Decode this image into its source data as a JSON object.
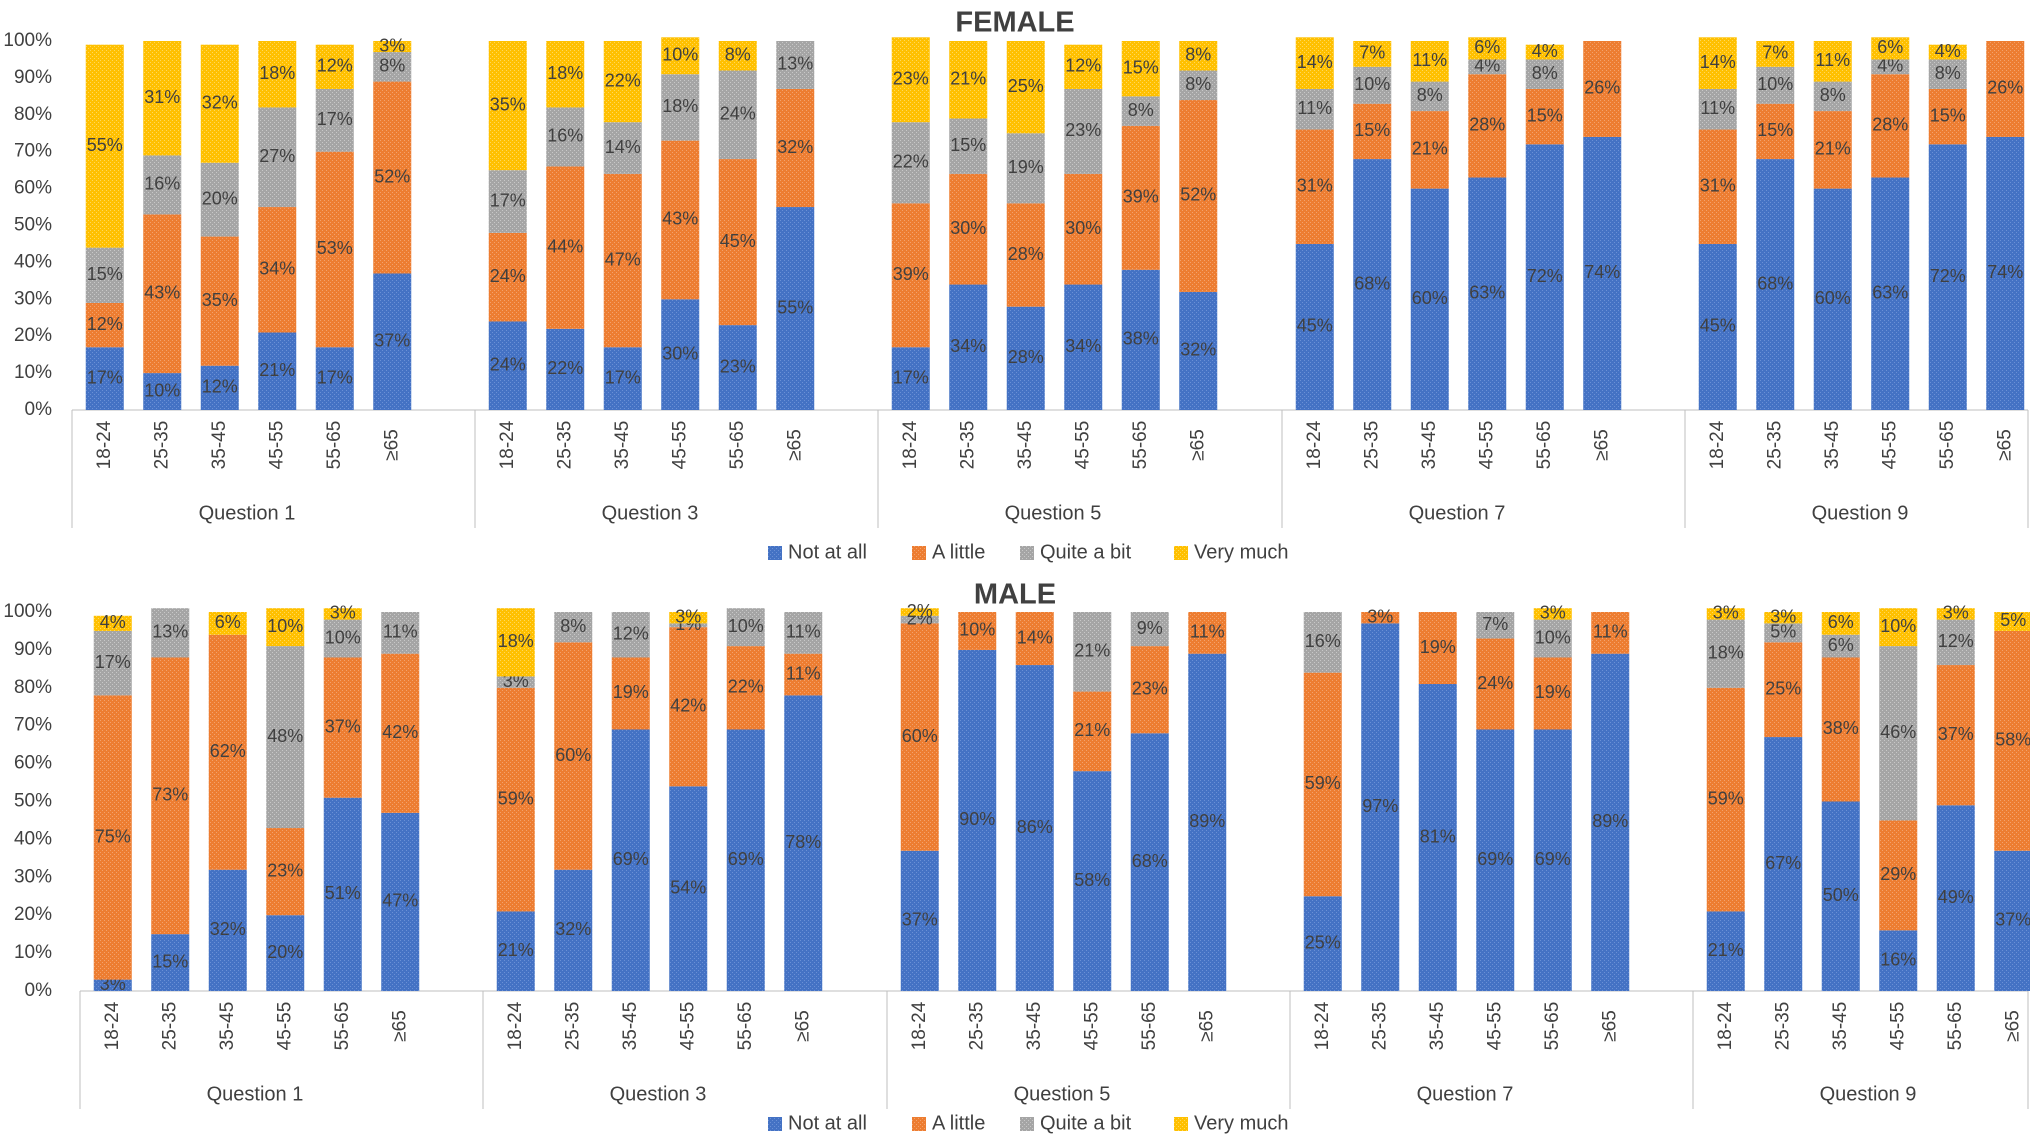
{
  "chart_data": [
    {
      "type": "bar",
      "stacked": true,
      "title": "FEMALE",
      "ylim": [
        0,
        100
      ],
      "yticks": [
        "0%",
        "10%",
        "20%",
        "30%",
        "40%",
        "50%",
        "60%",
        "70%",
        "80%",
        "90%",
        "100%"
      ],
      "series_names": [
        "Not at all",
        "A little",
        "Quite a bit",
        "Very much"
      ],
      "series_colors": [
        "#4472C4",
        "#ED7D31",
        "#A5A5A5",
        "#FFC000"
      ],
      "groups": [
        {
          "name": "Question 1",
          "bars": [
            {
              "category": "18-24",
              "values": [
                17,
                12,
                15,
                55
              ]
            },
            {
              "category": "25-35",
              "values": [
                10,
                43,
                16,
                31
              ]
            },
            {
              "category": "35-45",
              "values": [
                12,
                35,
                20,
                32
              ]
            },
            {
              "category": "45-55",
              "values": [
                21,
                34,
                27,
                18
              ]
            },
            {
              "category": "55-65",
              "values": [
                17,
                53,
                17,
                12
              ]
            },
            {
              "category": "≥65",
              "values": [
                37,
                52,
                8,
                3
              ]
            }
          ]
        },
        {
          "name": "Question 3",
          "bars": [
            {
              "category": "18-24",
              "values": [
                24,
                24,
                17,
                35
              ]
            },
            {
              "category": "25-35",
              "values": [
                22,
                44,
                16,
                18
              ]
            },
            {
              "category": "35-45",
              "values": [
                17,
                47,
                14,
                22
              ]
            },
            {
              "category": "45-55",
              "values": [
                30,
                43,
                18,
                10
              ]
            },
            {
              "category": "55-65",
              "values": [
                23,
                45,
                24,
                8
              ]
            },
            {
              "category": "≥65",
              "values": [
                55,
                32,
                13,
                0
              ]
            }
          ]
        },
        {
          "name": "Question 5",
          "bars": [
            {
              "category": "18-24",
              "values": [
                17,
                39,
                22,
                23
              ]
            },
            {
              "category": "25-35",
              "values": [
                34,
                30,
                15,
                21
              ]
            },
            {
              "category": "35-45",
              "values": [
                28,
                28,
                19,
                25
              ]
            },
            {
              "category": "45-55",
              "values": [
                34,
                30,
                23,
                12
              ]
            },
            {
              "category": "55-65",
              "values": [
                38,
                39,
                8,
                15
              ]
            },
            {
              "category": "≥65",
              "values": [
                32,
                52,
                8,
                8
              ]
            }
          ]
        },
        {
          "name": "Question 7",
          "bars": [
            {
              "category": "18-24",
              "values": [
                45,
                31,
                11,
                14
              ]
            },
            {
              "category": "25-35",
              "values": [
                68,
                15,
                10,
                7
              ]
            },
            {
              "category": "35-45",
              "values": [
                60,
                21,
                8,
                11
              ]
            },
            {
              "category": "45-55",
              "values": [
                63,
                28,
                4,
                6
              ]
            },
            {
              "category": "55-65",
              "values": [
                72,
                15,
                8,
                4
              ]
            },
            {
              "category": "≥65",
              "values": [
                74,
                26,
                0,
                0
              ]
            }
          ]
        },
        {
          "name": "Question 9",
          "bars": [
            {
              "category": "18-24",
              "values": [
                45,
                31,
                11,
                14
              ]
            },
            {
              "category": "25-35",
              "values": [
                68,
                15,
                10,
                7
              ]
            },
            {
              "category": "35-45",
              "values": [
                60,
                21,
                8,
                11
              ]
            },
            {
              "category": "45-55",
              "values": [
                63,
                28,
                4,
                6
              ]
            },
            {
              "category": "55-65",
              "values": [
                72,
                15,
                8,
                4
              ]
            },
            {
              "category": "≥65",
              "values": [
                74,
                26,
                0,
                0
              ]
            }
          ]
        }
      ]
    },
    {
      "type": "bar",
      "stacked": true,
      "title": "MALE",
      "ylim": [
        0,
        100
      ],
      "yticks": [
        "0%",
        "10%",
        "20%",
        "30%",
        "40%",
        "50%",
        "60%",
        "70%",
        "80%",
        "90%",
        "100%"
      ],
      "series_names": [
        "Not at all",
        "A little",
        "Quite a bit",
        "Very much"
      ],
      "series_colors": [
        "#4472C4",
        "#ED7D31",
        "#A5A5A5",
        "#FFC000"
      ],
      "groups": [
        {
          "name": "Question 1",
          "bars": [
            {
              "category": "18-24",
              "values": [
                3,
                75,
                17,
                4
              ]
            },
            {
              "category": "25-35",
              "values": [
                15,
                73,
                13,
                0
              ]
            },
            {
              "category": "35-45",
              "values": [
                32,
                62,
                0,
                6
              ]
            },
            {
              "category": "45-55",
              "values": [
                20,
                23,
                48,
                10
              ]
            },
            {
              "category": "55-65",
              "values": [
                51,
                37,
                10,
                3
              ]
            },
            {
              "category": "≥65",
              "values": [
                47,
                42,
                11,
                0
              ]
            }
          ]
        },
        {
          "name": "Question 3",
          "bars": [
            {
              "category": "18-24",
              "values": [
                21,
                59,
                3,
                18
              ]
            },
            {
              "category": "25-35",
              "values": [
                32,
                60,
                8,
                0
              ]
            },
            {
              "category": "35-45",
              "values": [
                69,
                19,
                12,
                0
              ]
            },
            {
              "category": "45-55",
              "values": [
                54,
                42,
                1,
                3
              ]
            },
            {
              "category": "55-65",
              "values": [
                69,
                22,
                10,
                0
              ]
            },
            {
              "category": "≥65",
              "values": [
                78,
                11,
                11,
                0
              ]
            }
          ]
        },
        {
          "name": "Question 5",
          "bars": [
            {
              "category": "18-24",
              "values": [
                37,
                60,
                2,
                2
              ]
            },
            {
              "category": "25-35",
              "values": [
                90,
                10,
                0,
                0
              ]
            },
            {
              "category": "35-45",
              "values": [
                86,
                14,
                0,
                0
              ]
            },
            {
              "category": "45-55",
              "values": [
                58,
                21,
                21,
                0
              ]
            },
            {
              "category": "55-65",
              "values": [
                68,
                23,
                9,
                0
              ]
            },
            {
              "category": "≥65",
              "values": [
                89,
                11,
                0,
                0
              ]
            }
          ]
        },
        {
          "name": "Question 7",
          "bars": [
            {
              "category": "18-24",
              "values": [
                25,
                59,
                16,
                0
              ]
            },
            {
              "category": "25-35",
              "values": [
                97,
                3,
                0,
                0
              ]
            },
            {
              "category": "35-45",
              "values": [
                81,
                19,
                0,
                0
              ]
            },
            {
              "category": "45-55",
              "values": [
                69,
                24,
                7,
                0
              ]
            },
            {
              "category": "55-65",
              "values": [
                69,
                19,
                10,
                3
              ]
            },
            {
              "category": "≥65",
              "values": [
                89,
                11,
                0,
                0
              ]
            }
          ]
        },
        {
          "name": "Question 9",
          "bars": [
            {
              "category": "18-24",
              "values": [
                21,
                59,
                18,
                3
              ]
            },
            {
              "category": "25-35",
              "values": [
                67,
                25,
                5,
                3
              ]
            },
            {
              "category": "35-45",
              "values": [
                50,
                38,
                6,
                6
              ]
            },
            {
              "category": "45-55",
              "values": [
                16,
                29,
                46,
                10
              ]
            },
            {
              "category": "55-65",
              "values": [
                49,
                37,
                12,
                3
              ]
            },
            {
              "category": "≥65",
              "values": [
                37,
                58,
                0,
                5
              ]
            }
          ]
        }
      ]
    }
  ]
}
